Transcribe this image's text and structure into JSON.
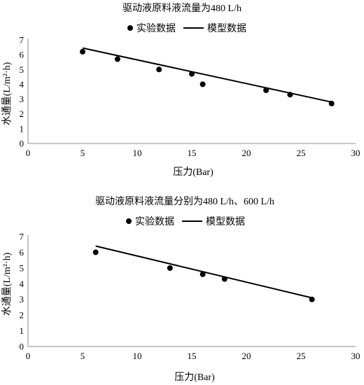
{
  "chart_data": [
    {
      "type": "scatter",
      "title": "驱动液原料液流量为480 L/h",
      "xlabel": "压力(Bar)",
      "ylabel": "水通量(L/m²·h)",
      "xlim": [
        0,
        30
      ],
      "ylim": [
        0,
        7
      ],
      "x_ticks": [
        "0",
        "5",
        "10",
        "15",
        "20",
        "25",
        "30"
      ],
      "y_ticks": [
        "0",
        "1",
        "2",
        "3",
        "4",
        "5",
        "6",
        "7"
      ],
      "legend_position": "top",
      "grid": false,
      "series": [
        {
          "name": "实验数据",
          "kind": "points",
          "points": [
            [
              5,
              6.2
            ],
            [
              8.2,
              5.7
            ],
            [
              12,
              5.0
            ],
            [
              15,
              4.7
            ],
            [
              16,
              4.0
            ],
            [
              21.8,
              3.6
            ],
            [
              24,
              3.3
            ],
            [
              27.8,
              2.7
            ]
          ]
        },
        {
          "name": "模型数据",
          "kind": "line",
          "points": [
            [
              5,
              6.45
            ],
            [
              27.8,
              2.8
            ]
          ]
        }
      ]
    },
    {
      "type": "scatter",
      "title": "驱动液原料液流量分别为480 L/h、600 L/h",
      "xlabel": "压力(Bar)",
      "ylabel": "水通量(L/m²·h)",
      "xlim": [
        0,
        30
      ],
      "ylim": [
        0,
        7
      ],
      "x_ticks": [
        "0",
        "5",
        "10",
        "15",
        "20",
        "25",
        "30"
      ],
      "y_ticks": [
        "0",
        "1",
        "2",
        "3",
        "4",
        "5",
        "6",
        "7"
      ],
      "legend_position": "top",
      "grid": false,
      "series": [
        {
          "name": "实验数据",
          "kind": "points",
          "points": [
            [
              6.2,
              6.0
            ],
            [
              13,
              5.0
            ],
            [
              16,
              4.6
            ],
            [
              18,
              4.3
            ],
            [
              26,
              3.0
            ]
          ]
        },
        {
          "name": "模型数据",
          "kind": "line",
          "points": [
            [
              6.2,
              6.4
            ],
            [
              26,
              3.1
            ]
          ]
        }
      ]
    }
  ]
}
